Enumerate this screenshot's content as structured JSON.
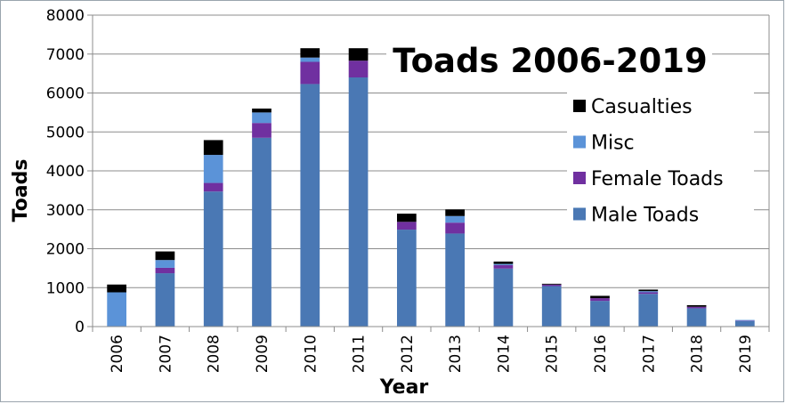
{
  "chart_data": {
    "type": "bar",
    "stacked": true,
    "title": "Toads 2006-2019",
    "xlabel": "Year",
    "ylabel": "Toads",
    "ylim": [
      0,
      8000
    ],
    "yticks": [
      0,
      1000,
      2000,
      3000,
      4000,
      5000,
      6000,
      7000,
      8000
    ],
    "grid": true,
    "legend_position": "right",
    "categories": [
      "2006",
      "2007",
      "2008",
      "2009",
      "2010",
      "2011",
      "2012",
      "2013",
      "2014",
      "2015",
      "2016",
      "2017",
      "2018",
      "2019"
    ],
    "series": [
      {
        "name": "Male Toads",
        "color": "#4a78b4",
        "values": [
          0,
          1370,
          3470,
          4850,
          6230,
          6400,
          2490,
          2390,
          1490,
          1040,
          660,
          840,
          470,
          140
        ]
      },
      {
        "name": "Female Toads",
        "color": "#7030a0",
        "values": [
          0,
          140,
          220,
          380,
          570,
          430,
          200,
          280,
          90,
          40,
          70,
          40,
          40,
          10
        ]
      },
      {
        "name": "Misc",
        "color": "#5b93d8",
        "values": [
          880,
          200,
          720,
          270,
          110,
          0,
          0,
          170,
          30,
          0,
          0,
          30,
          0,
          20
        ]
      },
      {
        "name": "Casualties",
        "color": "#000000",
        "values": [
          200,
          220,
          380,
          100,
          240,
          320,
          210,
          170,
          60,
          20,
          60,
          40,
          40,
          0
        ]
      }
    ]
  }
}
